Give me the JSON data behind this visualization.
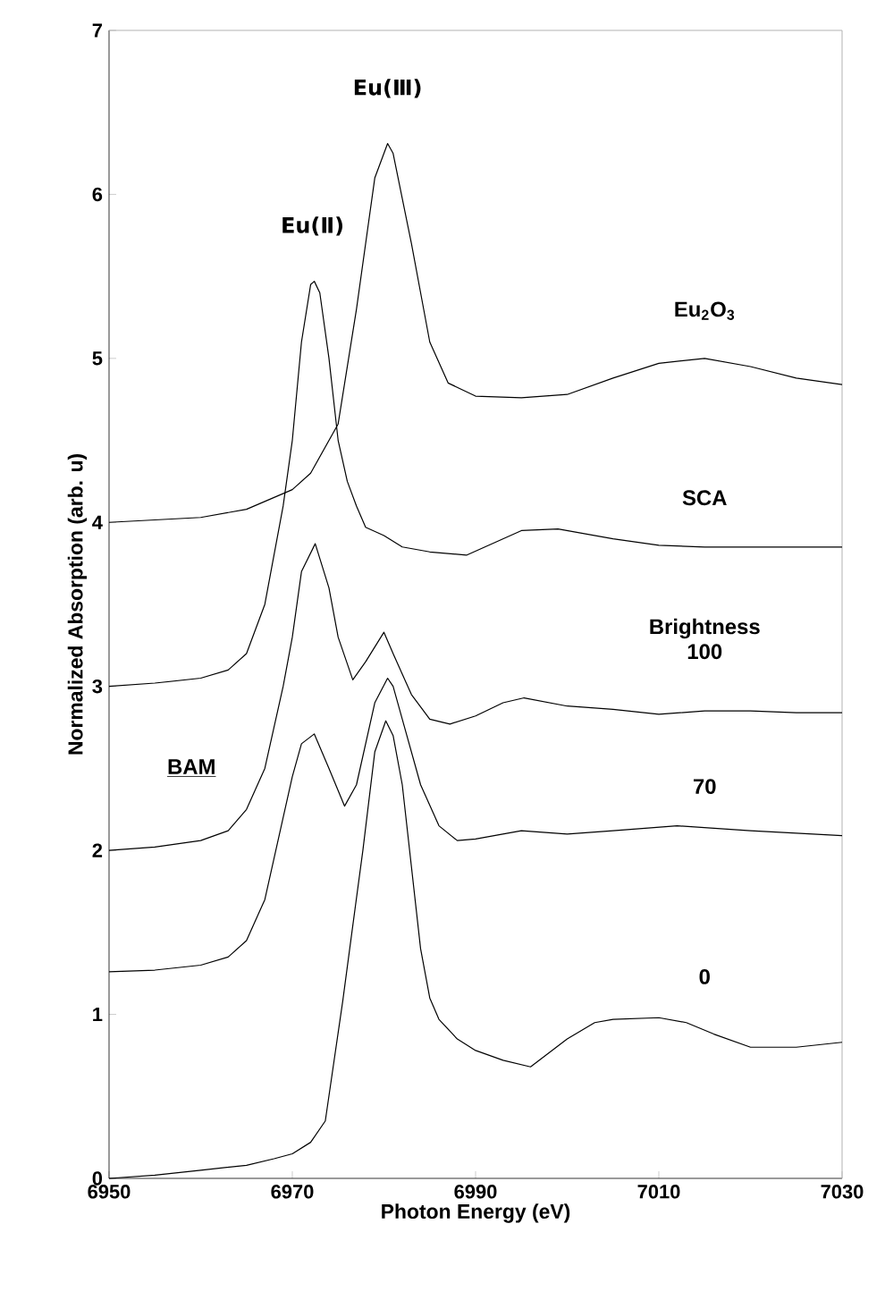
{
  "chart_data": {
    "type": "line",
    "xlabel": "Photon Energy (eV)",
    "ylabel": "Normalized Absorption (arb. u)",
    "xlim": [
      6950,
      7030
    ],
    "xticks": [
      6950,
      6970,
      6990,
      7010,
      7030
    ],
    "ylim": [
      0,
      7
    ],
    "yticks": [
      0,
      1,
      2,
      3,
      4,
      5,
      6,
      7
    ],
    "marker": "none",
    "line_style": "solid",
    "grid": false,
    "legend": false,
    "annotations": [
      {
        "text": "Eu(Ⅱ)",
        "x": 6972.2,
        "y": 5.47
      },
      {
        "text": "Eu(Ⅲ)",
        "x": 6980.4,
        "y": 6.31
      },
      "BAM"
    ],
    "series": [
      {
        "name": "Eu$_{2}$O$_{3}$",
        "color": "#000000",
        "x": [
          6950,
          6960,
          6965,
          6970,
          6972,
          6975,
          6977,
          6979,
          6980.4,
          6981,
          6983,
          6985,
          6987,
          6990,
          6995,
          7000,
          7005,
          7010,
          7015,
          7020,
          7025,
          7030
        ],
        "values": [
          4.0,
          4.03,
          4.08,
          4.2,
          4.3,
          4.6,
          5.3,
          6.1,
          6.31,
          6.25,
          5.7,
          5.1,
          4.85,
          4.77,
          4.76,
          4.78,
          4.88,
          4.97,
          5.0,
          4.95,
          4.88,
          4.84
        ]
      },
      {
        "name": "SCA",
        "color": "#000000",
        "x": [
          6950,
          6955,
          6960,
          6963,
          6965,
          6967,
          6969,
          6970,
          6971,
          6972,
          6972.4,
          6973,
          6974,
          6975,
          6976,
          6977,
          6978,
          6980,
          6982,
          6985,
          6989,
          6993,
          6995,
          6999,
          7005,
          7010,
          7015,
          7020,
          7025,
          7030
        ],
        "values": [
          3.0,
          3.02,
          3.05,
          3.1,
          3.2,
          3.5,
          4.1,
          4.5,
          5.1,
          5.45,
          5.47,
          5.4,
          5.0,
          4.5,
          4.25,
          4.1,
          3.97,
          3.92,
          3.85,
          3.82,
          3.8,
          3.9,
          3.95,
          3.96,
          3.9,
          3.86,
          3.85,
          3.85,
          3.85,
          3.85
        ]
      },
      {
        "name": "Brightness 100",
        "color": "#000000",
        "x": [
          6950,
          6955,
          6960,
          6963,
          6965,
          6967,
          6969,
          6970,
          6971,
          6972.5,
          6974,
          6975,
          6976.6,
          6978,
          6980,
          6981,
          6983,
          6985,
          6987.2,
          6990,
          6993,
          6995.3,
          7000,
          7005,
          7010,
          7015,
          7020,
          7025,
          7030
        ],
        "values": [
          2.0,
          2.02,
          2.06,
          2.12,
          2.25,
          2.5,
          3.0,
          3.3,
          3.7,
          3.87,
          3.6,
          3.3,
          3.04,
          3.15,
          3.33,
          3.2,
          2.95,
          2.8,
          2.77,
          2.82,
          2.9,
          2.93,
          2.88,
          2.86,
          2.83,
          2.85,
          2.85,
          2.84,
          2.84
        ]
      },
      {
        "name": "70",
        "color": "#000000",
        "x": [
          6950,
          6955,
          6960,
          6963,
          6965,
          6967,
          6969,
          6970,
          6971,
          6972.4,
          6974,
          6975.7,
          6977,
          6979,
          6980.4,
          6981,
          6982,
          6984,
          6986,
          6988,
          6990,
          6995,
          7000,
          7005,
          7012,
          7020,
          7030
        ],
        "values": [
          1.26,
          1.27,
          1.3,
          1.35,
          1.45,
          1.7,
          2.2,
          2.45,
          2.65,
          2.71,
          2.5,
          2.27,
          2.4,
          2.9,
          3.05,
          3.0,
          2.8,
          2.4,
          2.15,
          2.06,
          2.07,
          2.12,
          2.1,
          2.12,
          2.15,
          2.12,
          2.09
        ]
      },
      {
        "name": "0",
        "color": "#000000",
        "x": [
          6950,
          6955,
          6960,
          6965,
          6968,
          6970,
          6972,
          6973.6,
          6975.5,
          6976.5,
          6977.7,
          6979,
          6980.2,
          6981,
          6982,
          6983,
          6984,
          6985,
          6986,
          6988,
          6990,
          6993,
          6996,
          7000,
          7003,
          7005,
          7010,
          7013,
          7016,
          7020,
          7025,
          7030
        ],
        "values": [
          0.0,
          0.02,
          0.05,
          0.08,
          0.12,
          0.15,
          0.22,
          0.35,
          1.08,
          1.5,
          2.0,
          2.6,
          2.79,
          2.7,
          2.4,
          1.9,
          1.4,
          1.1,
          0.97,
          0.85,
          0.78,
          0.72,
          0.68,
          0.85,
          0.95,
          0.97,
          0.98,
          0.95,
          0.88,
          0.8,
          0.8,
          0.83
        ]
      }
    ]
  }
}
